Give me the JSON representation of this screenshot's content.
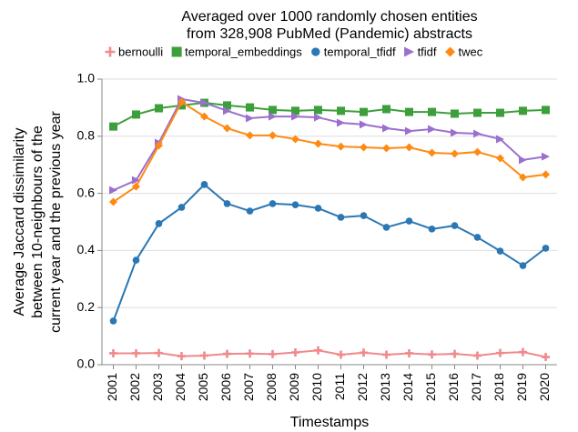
{
  "chart_data": {
    "type": "line",
    "title": [
      "Averaged over 1000 randomly chosen entities",
      "from 328,908 PubMed (Pandemic) abstracts"
    ],
    "x_label": "Timestamps",
    "y_label": [
      "Average Jaccard dissimilarity",
      "between 10-neighbours of the",
      "current year and the previous year"
    ],
    "categories": [
      "2001",
      "2002",
      "2003",
      "2004",
      "2005",
      "2006",
      "2007",
      "2008",
      "2009",
      "2010",
      "2011",
      "2012",
      "2013",
      "2014",
      "2015",
      "2016",
      "2017",
      "2018",
      "2019",
      "2020"
    ],
    "ylim": [
      0,
      1.0
    ],
    "yticks": [
      {
        "value": 0,
        "label": "0.0"
      },
      0.2,
      0.4,
      0.6,
      0.8,
      {
        "value": 1.0,
        "label": "1.0"
      }
    ],
    "grid": true,
    "legend": "top",
    "series": [
      {
        "name": "bernoulli",
        "color": "#f0898c",
        "marker": "plus",
        "values": [
          0.04,
          0.04,
          0.041,
          0.03,
          0.032,
          0.038,
          0.039,
          0.037,
          0.043,
          0.05,
          0.035,
          0.042,
          0.035,
          0.04,
          0.036,
          0.038,
          0.032,
          0.041,
          0.044,
          0.027
        ]
      },
      {
        "name": "temporal_embeddings",
        "color": "#3d9f3c",
        "marker": "square",
        "values": [
          0.834,
          0.876,
          0.898,
          0.908,
          0.917,
          0.908,
          0.901,
          0.892,
          0.889,
          0.892,
          0.889,
          0.885,
          0.895,
          0.885,
          0.885,
          0.879,
          0.882,
          0.882,
          0.889,
          0.892
        ]
      },
      {
        "name": "temporal_tfidf",
        "color": "#2a77b4",
        "marker": "circle",
        "values": [
          0.153,
          0.366,
          0.494,
          0.551,
          0.631,
          0.564,
          0.538,
          0.564,
          0.56,
          0.548,
          0.516,
          0.522,
          0.481,
          0.503,
          0.475,
          0.487,
          0.446,
          0.398,
          0.347,
          0.408
        ]
      },
      {
        "name": "tfidf",
        "color": "#9b6fcf",
        "marker": "triangle-right",
        "values": [
          0.611,
          0.646,
          0.777,
          0.93,
          0.917,
          0.889,
          0.863,
          0.869,
          0.869,
          0.866,
          0.847,
          0.841,
          0.828,
          0.818,
          0.825,
          0.812,
          0.809,
          0.79,
          0.717,
          0.729
        ]
      },
      {
        "name": "twec",
        "color": "#ff8a13",
        "marker": "diamond",
        "values": [
          0.57,
          0.624,
          0.768,
          0.92,
          0.869,
          0.828,
          0.803,
          0.803,
          0.79,
          0.774,
          0.764,
          0.761,
          0.758,
          0.761,
          0.742,
          0.739,
          0.745,
          0.723,
          0.656,
          0.666
        ]
      }
    ]
  }
}
